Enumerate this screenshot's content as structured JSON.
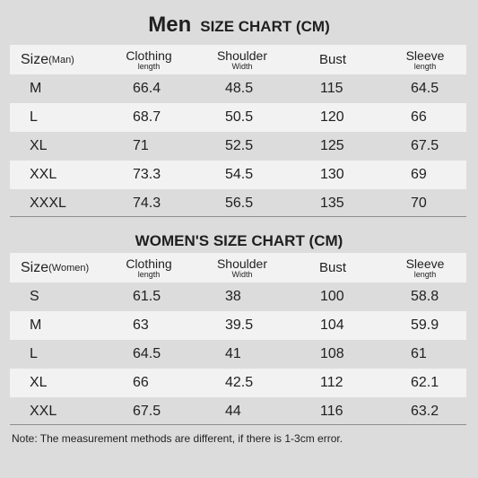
{
  "men": {
    "title_main": "Men",
    "title_sub": "SIZE CHART (CM)",
    "header": {
      "size_label": "Size",
      "size_sub": "(Man)",
      "cols": [
        {
          "main": "Clothing",
          "sub": "length"
        },
        {
          "main": "Shoulder",
          "sub": "Width"
        },
        {
          "main": "Bust",
          "sub": ""
        },
        {
          "main": "Sleeve",
          "sub": "length"
        }
      ]
    },
    "rows": [
      [
        "M",
        "66.4",
        "48.5",
        "115",
        "64.5"
      ],
      [
        "L",
        "68.7",
        "50.5",
        "120",
        "66"
      ],
      [
        "XL",
        "71",
        "52.5",
        "125",
        "67.5"
      ],
      [
        "XXL",
        "73.3",
        "54.5",
        "130",
        "69"
      ],
      [
        "XXXL",
        "74.3",
        "56.5",
        "135",
        "70"
      ]
    ]
  },
  "women": {
    "title": "WOMEN'S SIZE CHART (CM)",
    "header": {
      "size_label": "Size",
      "size_sub": "(Women)",
      "cols": [
        {
          "main": "Clothing",
          "sub": "length"
        },
        {
          "main": "Shoulder",
          "sub": "Width"
        },
        {
          "main": "Bust",
          "sub": ""
        },
        {
          "main": "Sleeve",
          "sub": "length"
        }
      ]
    },
    "rows": [
      [
        "S",
        "61.5",
        "38",
        "100",
        "58.8"
      ],
      [
        "M",
        "63",
        "39.5",
        "104",
        "59.9"
      ],
      [
        "L",
        "64.5",
        "41",
        "108",
        "61"
      ],
      [
        "XL",
        "66",
        "42.5",
        "112",
        "62.1"
      ],
      [
        "XXL",
        "67.5",
        "44",
        "116",
        "63.2"
      ]
    ]
  },
  "note": "Note: The measurement methods are different, if there is 1-3cm error."
}
